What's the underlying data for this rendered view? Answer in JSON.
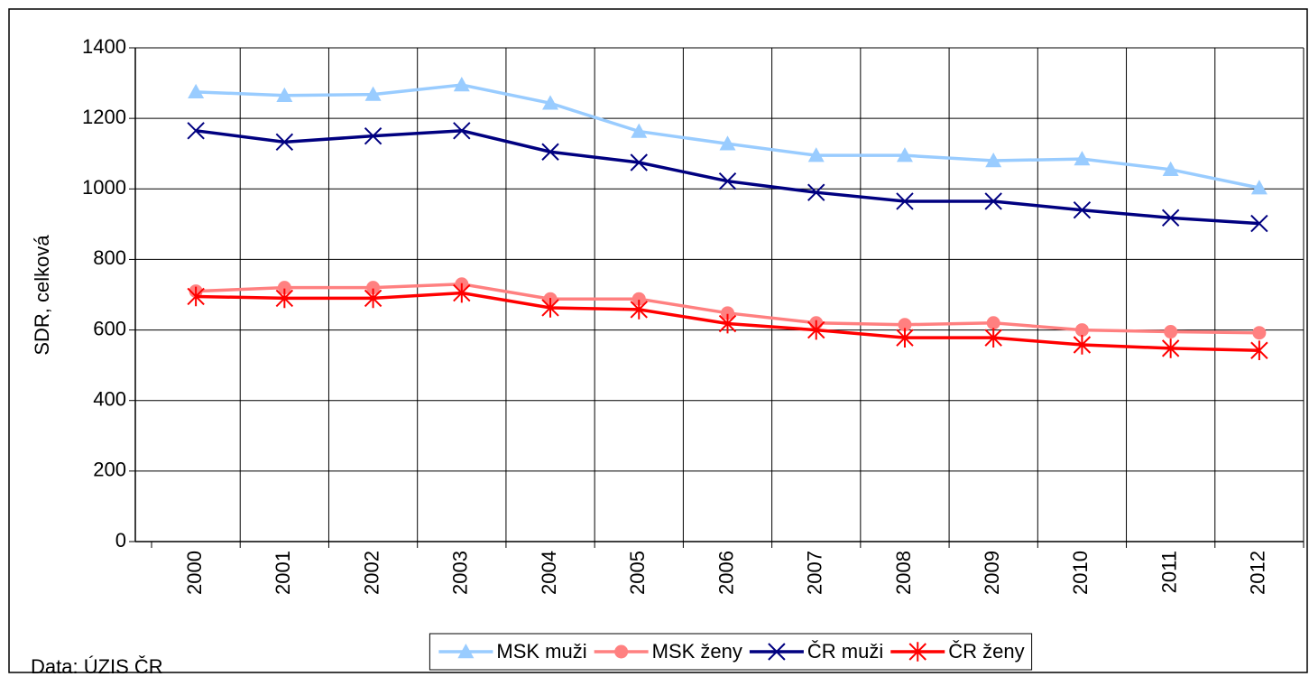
{
  "chart_data": {
    "type": "line",
    "y_label": "SDR, celková",
    "source": "Data: ÚZIS ČR",
    "categories": [
      "2000",
      "2001",
      "2002",
      "2003",
      "2004",
      "2005",
      "2006",
      "2007",
      "2008",
      "2009",
      "2010",
      "2011",
      "2012"
    ],
    "series": [
      {
        "name": "MSK muži",
        "color": "#99ccff",
        "marker": "triangle",
        "values": [
          1275,
          1265,
          1268,
          1295,
          1243,
          1163,
          1128,
          1095,
          1095,
          1080,
          1085,
          1055,
          1003
        ]
      },
      {
        "name": "MSK ženy",
        "color": "#ff8080",
        "marker": "circle",
        "values": [
          710,
          720,
          720,
          730,
          688,
          688,
          648,
          620,
          615,
          620,
          600,
          595,
          592
        ]
      },
      {
        "name": "ČR muži",
        "color": "#000080",
        "marker": "x",
        "values": [
          1165,
          1133,
          1150,
          1165,
          1105,
          1075,
          1022,
          990,
          965,
          965,
          940,
          918,
          902
        ]
      },
      {
        "name": "ČR ženy",
        "color": "#ff0000",
        "marker": "star",
        "values": [
          695,
          690,
          690,
          705,
          663,
          658,
          618,
          600,
          578,
          578,
          558,
          548,
          542
        ]
      }
    ],
    "ylim": [
      0,
      1400
    ],
    "yticks": [
      0,
      200,
      400,
      600,
      800,
      1000,
      1200,
      1400
    ],
    "grid": true,
    "legend": "bottom"
  }
}
